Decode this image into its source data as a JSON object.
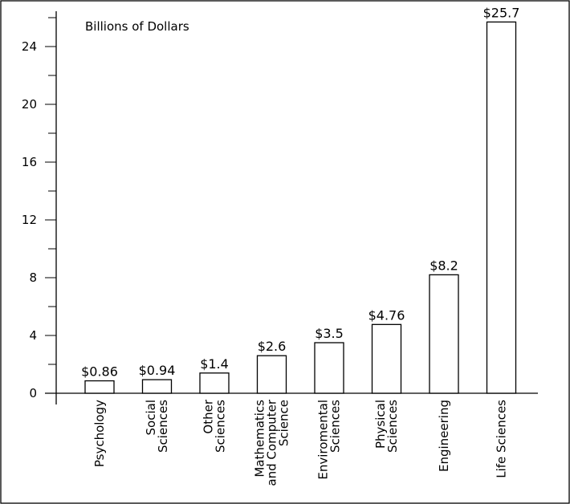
{
  "chart_data": {
    "type": "bar",
    "ylabel": "Billions of Dollars",
    "ylim": [
      0,
      26
    ],
    "yticks_labeled": [
      "0",
      "4",
      "8",
      "12",
      "16",
      "20",
      "24"
    ],
    "ytick_values": [
      0,
      4,
      8,
      12,
      16,
      20,
      24
    ],
    "yticks_minor": [
      2,
      6,
      10,
      14,
      18,
      22,
      26
    ],
    "categories": [
      [
        "Psychology"
      ],
      [
        "Social",
        "Sciences"
      ],
      [
        "Other",
        "Sciences"
      ],
      [
        "Mathematics",
        "and Computer",
        "Science"
      ],
      [
        "Enviromental",
        "Sciences"
      ],
      [
        "Physical",
        "Sciences"
      ],
      [
        "Engineering"
      ],
      [
        "Life Sciences"
      ]
    ],
    "values": [
      0.86,
      0.94,
      1.4,
      2.6,
      3.5,
      4.76,
      8.2,
      25.7
    ],
    "value_labels": [
      "$0.86",
      "$0.94",
      "$1.4",
      "$2.6",
      "$3.5",
      "$4.76",
      "$8.2",
      "$25.7"
    ],
    "grid": false,
    "bar_fill": "#ffffff",
    "bar_stroke": "#000000"
  }
}
